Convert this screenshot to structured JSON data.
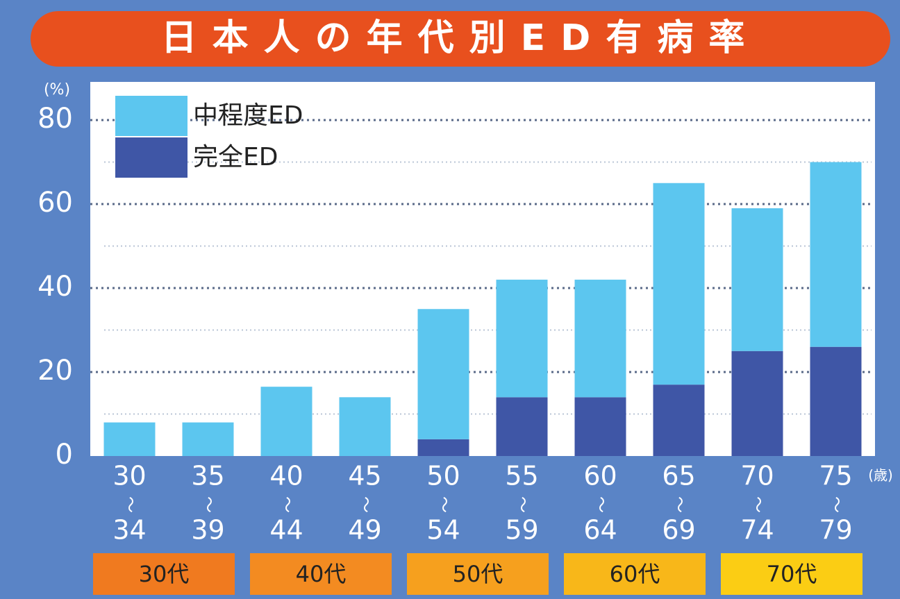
{
  "chart_data": {
    "type": "stacked-bar",
    "title": "日本人の年代別ED有病率",
    "y_unit": "(%)",
    "x_unit": "(歳)",
    "categories": [
      "30",
      "35",
      "40",
      "45",
      "50",
      "55",
      "60",
      "65",
      "70",
      "75"
    ],
    "category_ends": [
      "34",
      "39",
      "44",
      "49",
      "54",
      "59",
      "64",
      "69",
      "74",
      "79"
    ],
    "range_mark": "〜",
    "series": [
      {
        "name": "完全ED",
        "color": "#3f56a6",
        "values": [
          0,
          0,
          0,
          0,
          4,
          14,
          14,
          17,
          25,
          26
        ]
      },
      {
        "name": "中程度ED",
        "color": "#5cc6ef",
        "values": [
          8,
          8,
          16.5,
          14,
          31,
          28,
          28,
          48,
          34,
          44
        ]
      }
    ],
    "ylim": [
      0,
      80
    ],
    "yticks": [
      0,
      20,
      40,
      60,
      80
    ],
    "minor_yticks": [
      10,
      30,
      50,
      70
    ],
    "grid": true,
    "legend": "top-left",
    "groups": [
      {
        "label": "30代",
        "color": "#f07a1f"
      },
      {
        "label": "40代",
        "color": "#f38b21"
      },
      {
        "label": "50代",
        "color": "#f6a01e"
      },
      {
        "label": "60代",
        "color": "#f8b719"
      },
      {
        "label": "70代",
        "color": "#fbcd14"
      }
    ]
  }
}
